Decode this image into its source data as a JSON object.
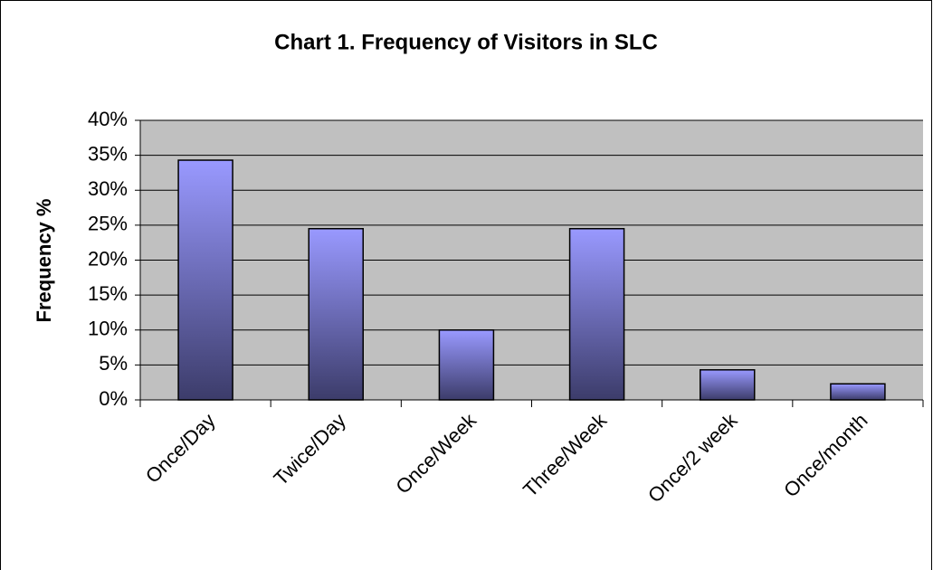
{
  "chart_data": {
    "type": "bar",
    "title": "Chart 1. Frequency of Visitors in SLC",
    "y_label": "Frequency %",
    "categories": [
      "Once/Day",
      "Twice/Day",
      "Once/Week",
      "Three/Week",
      "Once/2 week",
      "Once/month"
    ],
    "values": [
      34.3,
      24.5,
      10,
      24.5,
      4.3,
      2.3
    ],
    "color": "#9999ff",
    "ylim": [
      0,
      40
    ],
    "yticks": [
      {
        "value": 0,
        "label": "0%"
      },
      {
        "value": 5,
        "label": "5%"
      },
      {
        "value": 10,
        "label": "10%"
      },
      {
        "value": 15,
        "label": "15%"
      },
      {
        "value": 20,
        "label": "20%"
      },
      {
        "value": 25,
        "label": "25%"
      },
      {
        "value": 30,
        "label": "30%"
      },
      {
        "value": 35,
        "label": "35%"
      },
      {
        "value": 40,
        "label": "40%"
      }
    ],
    "grid": true
  }
}
